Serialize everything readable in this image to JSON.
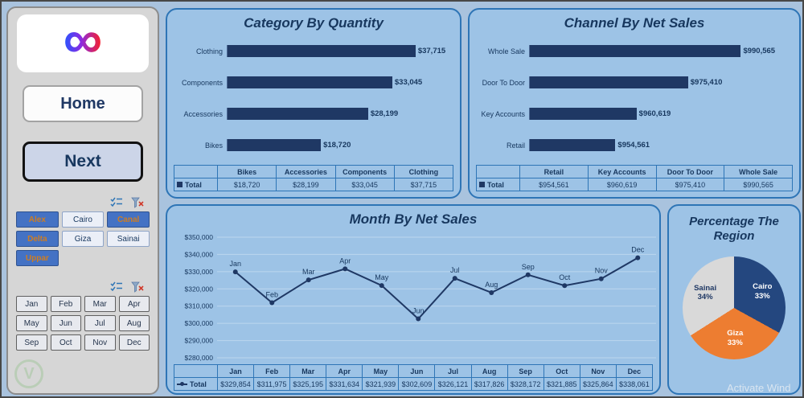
{
  "colors": {
    "navy": "#1f3864",
    "panel_bg": "#9dc3e6",
    "panel_border": "#2e75b6",
    "page_bg": "#a9c3de",
    "bar": "#1f3864",
    "selected_slicer_bg": "#4472c4",
    "selected_slicer_text": "#d07d20",
    "pie_cairo": "#24477f",
    "pie_giza": "#ed7d31",
    "pie_sainai": "#d9d9d9"
  },
  "sidebar": {
    "home_label": "Home",
    "next_label": "Next",
    "region_slicer": [
      {
        "label": "Alex",
        "selected": true
      },
      {
        "label": "Cairo",
        "selected": false
      },
      {
        "label": "Canal",
        "selected": true
      },
      {
        "label": "Delta",
        "selected": true
      },
      {
        "label": "Giza",
        "selected": false
      },
      {
        "label": "Sainai",
        "selected": false
      },
      {
        "label": "Uppar",
        "selected": true
      }
    ],
    "month_slicer": [
      {
        "label": "Jan",
        "selected": false
      },
      {
        "label": "Feb",
        "selected": false
      },
      {
        "label": "Mar",
        "selected": false
      },
      {
        "label": "Apr",
        "selected": false
      },
      {
        "label": "May",
        "selected": false
      },
      {
        "label": "Jun",
        "selected": false
      },
      {
        "label": "Jul",
        "selected": false
      },
      {
        "label": "Aug",
        "selected": false
      },
      {
        "label": "Sep",
        "selected": false
      },
      {
        "label": "Oct",
        "selected": false
      },
      {
        "label": "Nov",
        "selected": false
      },
      {
        "label": "Dec",
        "selected": false
      }
    ]
  },
  "watermark": "Activate Wind",
  "chart_data": [
    {
      "id": "category_by_quantity",
      "type": "bar",
      "orientation": "horizontal",
      "title": "Category By Quantity",
      "series_name": "Total",
      "categories": [
        "Clothing",
        "Components",
        "Accessories",
        "Bikes"
      ],
      "values": [
        37715,
        33045,
        28199,
        18720
      ],
      "value_labels": [
        "$37,715",
        "$33,045",
        "$28,199",
        "$18,720"
      ],
      "xlim": [
        0,
        45000
      ],
      "grid": false,
      "legend_position": "bottom-table",
      "table": {
        "headers": [
          "Bikes",
          "Accessories",
          "Components",
          "Clothing"
        ],
        "row_label": "Total",
        "values": [
          "$18,720",
          "$28,199",
          "$33,045",
          "$37,715"
        ]
      }
    },
    {
      "id": "channel_by_net_sales",
      "type": "bar",
      "orientation": "horizontal",
      "title": "Channel By Net Sales",
      "series_name": "Total",
      "categories": [
        "Whole Sale",
        "Door To Door",
        "Key Accounts",
        "Retail"
      ],
      "values": [
        990565,
        975410,
        960619,
        954561
      ],
      "value_labels": [
        "$990,565",
        "$975,410",
        "$960,619",
        "$954,561"
      ],
      "xlim": [
        930000,
        1005000
      ],
      "grid": false,
      "legend_position": "bottom-table",
      "table": {
        "headers": [
          "Retail",
          "Key Accounts",
          "Door To Door",
          "Whole Sale"
        ],
        "row_label": "Total",
        "values": [
          "$954,561",
          "$960,619",
          "$975,410",
          "$990,565"
        ]
      }
    },
    {
      "id": "month_by_net_sales",
      "type": "line",
      "title": "Month By Net Sales",
      "series_name": "Total",
      "x": [
        "Jan",
        "Feb",
        "Mar",
        "Apr",
        "May",
        "Jun",
        "Jul",
        "Aug",
        "Sep",
        "Oct",
        "Nov",
        "Dec"
      ],
      "values": [
        329854,
        311975,
        325195,
        331634,
        321939,
        302609,
        326121,
        317826,
        328172,
        321885,
        325864,
        338061
      ],
      "value_labels": [
        "$329,854",
        "$311,975",
        "$325,195",
        "$331,634",
        "$321,939",
        "$302,609",
        "$326,121",
        "$317,826",
        "$328,172",
        "$321,885",
        "$325,864",
        "$338,061"
      ],
      "ylim": [
        280000,
        350000
      ],
      "ytick": 10000,
      "ytick_labels": [
        "$280,000",
        "$290,000",
        "$300,000",
        "$310,000",
        "$320,000",
        "$330,000",
        "$340,000",
        "$350,000"
      ],
      "grid": true,
      "legend_position": "bottom-table",
      "table": {
        "headers": [
          "Jan",
          "Feb",
          "Mar",
          "Apr",
          "May",
          "Jun",
          "Jul",
          "Aug",
          "Sep",
          "Oct",
          "Nov",
          "Dec"
        ],
        "row_label": "Total",
        "values": [
          "$329,854",
          "$311,975",
          "$325,195",
          "$331,634",
          "$321,939",
          "$302,609",
          "$326,121",
          "$317,826",
          "$328,172",
          "$321,885",
          "$325,864",
          "$338,061"
        ]
      }
    },
    {
      "id": "percentage_the_region",
      "type": "pie",
      "title": "Percentage The Region",
      "slices": [
        {
          "name": "Cairo",
          "pct": 33,
          "pct_label": "33%",
          "color": "#24477f",
          "label_color": "#ffffff"
        },
        {
          "name": "Giza",
          "pct": 33,
          "pct_label": "33%",
          "color": "#ed7d31",
          "label_color": "#ffffff"
        },
        {
          "name": "Sainai",
          "pct": 34,
          "pct_label": "34%",
          "color": "#d9d9d9",
          "label_color": "#1f3864"
        }
      ]
    }
  ]
}
